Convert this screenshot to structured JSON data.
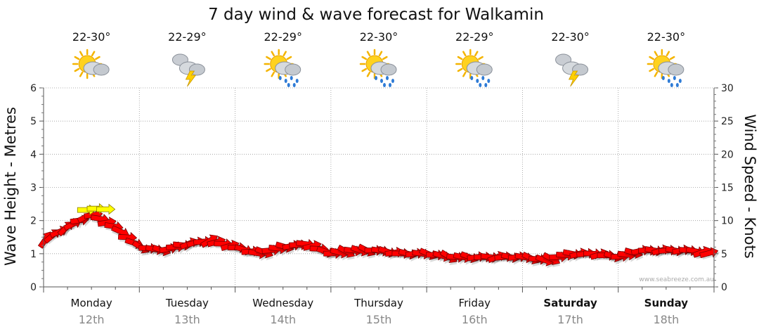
{
  "chart_data": {
    "type": "line",
    "title": "7 day wind & wave forecast for Walkamin",
    "ylabel": "Wave Height - Metres",
    "y2label": "Wind Speed - Knots",
    "ylim": [
      0,
      6
    ],
    "y2lim": [
      0,
      30
    ],
    "yticks": [
      "0",
      "1",
      "2",
      "3",
      "4",
      "5",
      "6"
    ],
    "y2ticks": [
      "0",
      "5",
      "10",
      "15",
      "20",
      "25",
      "30"
    ],
    "grid": true,
    "days": [
      {
        "name": "Monday",
        "date": "12th",
        "temp": "22-30°",
        "icon": "partly-cloudy-icon",
        "bold": false
      },
      {
        "name": "Tuesday",
        "date": "13th",
        "temp": "22-29°",
        "icon": "storm-icon",
        "bold": false
      },
      {
        "name": "Wednesday",
        "date": "14th",
        "temp": "22-29°",
        "icon": "sun-showers-icon",
        "bold": false
      },
      {
        "name": "Thursday",
        "date": "15th",
        "temp": "22-30°",
        "icon": "sun-showers-icon",
        "bold": false
      },
      {
        "name": "Friday",
        "date": "16th",
        "temp": "22-29°",
        "icon": "sun-showers-icon",
        "bold": false
      },
      {
        "name": "Saturday",
        "date": "17th",
        "temp": "22-30°",
        "icon": "storm-icon",
        "bold": true
      },
      {
        "name": "Sunday",
        "date": "18th",
        "temp": "22-30°",
        "icon": "sun-showers-icon",
        "bold": true
      }
    ],
    "series": [
      {
        "name": "",
        "x": [
          0,
          0.25,
          0.5,
          0.75,
          1,
          1.25,
          1.5,
          1.75,
          2,
          2.25,
          2.5,
          2.75,
          3,
          3.25,
          3.5,
          3.75,
          4,
          4.25,
          4.5,
          4.75,
          5,
          5.25,
          5.5,
          5.75,
          6,
          6.25,
          6.5,
          6.75,
          7
        ],
        "values": [
          7,
          9,
          11,
          9,
          6,
          5.5,
          6.5,
          7,
          6,
          5,
          6,
          6.5,
          5,
          5.5,
          5.5,
          5,
          5,
          4.5,
          4.5,
          4.5,
          4.5,
          4,
          5,
          5,
          4.5,
          5.5,
          5.5,
          5.5,
          5
        ],
        "direction_deg": [
          45,
          60,
          80,
          100,
          110,
          95,
          80,
          70,
          90,
          100,
          95,
          85,
          100,
          110,
          100,
          90,
          100,
          110,
          95,
          80,
          100,
          110,
          90,
          80,
          100,
          90,
          85,
          95,
          70
        ]
      }
    ],
    "highlight_color": "#ffff00",
    "arrow_color": "#ff0000"
  },
  "credit": "www.seabreeze.com.au"
}
